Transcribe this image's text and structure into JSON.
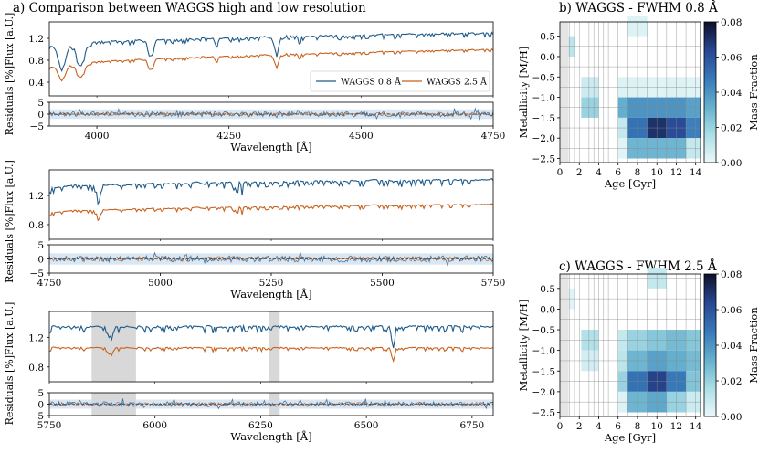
{
  "colors": {
    "high": "#1f5b8a",
    "low": "#c8621e",
    "band": "#c9ddf0",
    "mask": "#d8d8d8"
  },
  "chart_data": [
    {
      "type": "line",
      "title": "a) Comparison between WAGGS high and low resolution",
      "ylabel": "Flux [a.U.]",
      "residual_ylabel": "Residuals [%]",
      "xlabel": "Wavelength [Å]",
      "legend": {
        "placement": "lower-right",
        "entries": [
          "WAGGS 0.8 Å",
          "WAGGS 2.5 Å"
        ]
      },
      "series": [
        {
          "name": "WAGGS 0.8 Å",
          "color": "#1f5b8a"
        },
        {
          "name": "WAGGS 2.5 Å",
          "color": "#c8621e"
        }
      ],
      "residual_band": [
        -2,
        2
      ],
      "panels": [
        {
          "xlim": [
            3910,
            4750
          ],
          "ylim": [
            0.15,
            1.5
          ],
          "rylim": [
            -5,
            5
          ],
          "xticks": [
            4000,
            4250,
            4500,
            4750
          ],
          "xtick_labels": [
            "4000",
            "4250",
            "4500",
            "4750"
          ],
          "yticks": [
            0.4,
            0.8,
            1.2
          ],
          "ytick_labels": [
            "0.4",
            "0.8",
            "1.2"
          ],
          "rticks": [
            -5,
            0,
            5
          ],
          "rtick_labels": [
            "−5",
            "0",
            "5"
          ],
          "base_high": [
            1.05,
            1.3
          ],
          "base_low": [
            0.66,
            1.0
          ],
          "lines": [
            [
              3934,
              0.42,
              10
            ],
            [
              3969,
              0.4,
              10
            ],
            [
              4102,
              0.25,
              6
            ],
            [
              4227,
              0.12,
              3
            ],
            [
              4340,
              0.25,
              6
            ],
            [
              4383,
              0.08,
              3
            ]
          ],
          "masks": []
        },
        {
          "xlim": [
            4750,
            5750
          ],
          "ylim": [
            0.6,
            1.55
          ],
          "rylim": [
            -5,
            5
          ],
          "xticks": [
            4750,
            5000,
            5250,
            5500,
            5750
          ],
          "xtick_labels": [
            "4750",
            "5000",
            "5250",
            "5500",
            "5750"
          ],
          "yticks": [
            0.8,
            1.2
          ],
          "ytick_labels": [
            "0.8",
            "1.2"
          ],
          "rticks": [
            -5,
            0,
            5
          ],
          "rtick_labels": [
            "−5",
            "0",
            "5"
          ],
          "base_high": [
            1.3,
            1.42
          ],
          "base_low": [
            0.96,
            1.08
          ],
          "lines": [
            [
              4861,
              0.3,
              5
            ],
            [
              5167,
              0.2,
              2
            ],
            [
              5173,
              0.22,
              2
            ],
            [
              5184,
              0.22,
              2
            ],
            [
              5270,
              0.1,
              3
            ],
            [
              5335,
              0.06,
              3
            ]
          ],
          "masks": []
        },
        {
          "xlim": [
            5750,
            6800
          ],
          "ylim": [
            0.6,
            1.55
          ],
          "rylim": [
            -5,
            5
          ],
          "xticks": [
            5750,
            6000,
            6250,
            6500,
            6750
          ],
          "xtick_labels": [
            "5750",
            "6000",
            "6250",
            "6500",
            "6750"
          ],
          "yticks": [
            0.8,
            1.2
          ],
          "ytick_labels": [
            "0.8",
            "1.2"
          ],
          "rticks": [
            -5,
            0,
            5
          ],
          "rtick_labels": [
            "−5",
            "0",
            "5"
          ],
          "base_high": [
            1.34,
            1.35
          ],
          "base_low": [
            1.06,
            1.06
          ],
          "lines": [
            [
              5890,
              0.18,
              3
            ],
            [
              5896,
              0.16,
              3
            ],
            [
              6563,
              0.38,
              4
            ],
            [
              6495,
              0.05,
              3
            ]
          ],
          "masks": [
            [
              5850,
              5955
            ],
            [
              6270,
              6295
            ]
          ]
        }
      ]
    },
    {
      "type": "heatmap",
      "title": "b) WAGGS - FWHM 0.8 Å",
      "xlabel": "Age [Gyr]",
      "ylabel": "Metallicity [M/H]",
      "colorbar_label": "Mass Fraction",
      "colorbar_ticks": [
        "0.00",
        "0.02",
        "0.04",
        "0.06",
        "0.08"
      ],
      "vmax": 0.08,
      "xlim": [
        0,
        14.5
      ],
      "ylim": [
        -2.6,
        0.85
      ],
      "xticks": [
        0,
        2,
        4,
        6,
        8,
        10,
        12,
        14
      ],
      "yticks": [
        0.5,
        0.0,
        -0.5,
        -1.0,
        -1.5,
        -2.0,
        -2.5
      ],
      "ytick_labels": [
        "0.5",
        "0.0",
        "−0.5",
        "−1.0",
        "−1.5",
        "−2.0",
        "−2.5"
      ],
      "age_bins": [
        1,
        1.5,
        2,
        3,
        3.5,
        4,
        4.5,
        5,
        6,
        7,
        8,
        9,
        10,
        11,
        12,
        13,
        14
      ],
      "met_bins": [
        0.5,
        0.0,
        -0.5,
        -1.0,
        -1.5,
        -2.0,
        -2.5
      ],
      "cells": [
        {
          "age": 1.0,
          "met": 0.25,
          "v": 0.012
        },
        {
          "age": 7.5,
          "met": 0.75,
          "v": 0.004
        },
        {
          "age": 3.0,
          "met": -0.75,
          "v": 0.008
        },
        {
          "age": 6.5,
          "met": -0.75,
          "v": 0.004
        },
        {
          "age": 8.5,
          "met": -0.75,
          "v": 0.004
        },
        {
          "age": 10.5,
          "met": -0.75,
          "v": 0.003
        },
        {
          "age": 12.5,
          "met": -0.75,
          "v": 0.004
        },
        {
          "age": 14.0,
          "met": -0.75,
          "v": 0.003
        },
        {
          "age": 3.0,
          "met": -1.25,
          "v": 0.02
        },
        {
          "age": 6.5,
          "met": -1.25,
          "v": 0.032
        },
        {
          "age": 8.5,
          "met": -1.25,
          "v": 0.04
        },
        {
          "age": 10.5,
          "met": -1.25,
          "v": 0.04
        },
        {
          "age": 12.5,
          "met": -1.25,
          "v": 0.04
        },
        {
          "age": 14.0,
          "met": -1.25,
          "v": 0.036
        },
        {
          "age": 6.5,
          "met": -1.75,
          "v": 0.01
        },
        {
          "age": 8.5,
          "met": -1.75,
          "v": 0.05
        },
        {
          "age": 10.5,
          "met": -1.75,
          "v": 0.07
        },
        {
          "age": 12.5,
          "met": -1.75,
          "v": 0.062
        },
        {
          "age": 14.0,
          "met": -1.75,
          "v": 0.046
        },
        {
          "age": 6.5,
          "met": -2.25,
          "v": 0.003
        },
        {
          "age": 8.5,
          "met": -2.25,
          "v": 0.03
        },
        {
          "age": 10.5,
          "met": -2.25,
          "v": 0.03
        },
        {
          "age": 12.5,
          "met": -2.25,
          "v": 0.03
        },
        {
          "age": 14.0,
          "met": -2.25,
          "v": 0.01
        }
      ]
    },
    {
      "type": "heatmap",
      "title": "c) WAGGS - FWHM 2.5 Å",
      "xlabel": "Age [Gyr]",
      "ylabel": "Metallicity [M/H]",
      "colorbar_label": "Mass Fraction",
      "colorbar_ticks": [
        "0.00",
        "0.02",
        "0.04",
        "0.06",
        "0.08"
      ],
      "vmax": 0.08,
      "xlim": [
        0,
        14.5
      ],
      "ylim": [
        -2.6,
        0.85
      ],
      "xticks": [
        0,
        2,
        4,
        6,
        8,
        10,
        12,
        14
      ],
      "yticks": [
        0.5,
        0.0,
        -0.5,
        -1.0,
        -1.5,
        -2.0,
        -2.5
      ],
      "ytick_labels": [
        "0.5",
        "0.0",
        "−0.5",
        "−1.0",
        "−1.5",
        "−2.0",
        "−2.5"
      ],
      "age_bins": [
        1,
        1.5,
        2,
        3,
        3.5,
        4,
        4.5,
        5,
        6,
        7,
        8,
        9,
        10,
        11,
        12,
        13,
        14
      ],
      "met_bins": [
        0.5,
        0.0,
        -0.5,
        -1.0,
        -1.5,
        -2.0,
        -2.5
      ],
      "cells": [
        {
          "age": 1.0,
          "met": 0.25,
          "v": 0.003
        },
        {
          "age": 10.5,
          "met": 0.75,
          "v": 0.01
        },
        {
          "age": 3.0,
          "met": -0.75,
          "v": 0.014
        },
        {
          "age": 6.5,
          "met": -0.75,
          "v": 0.01
        },
        {
          "age": 8.5,
          "met": -0.75,
          "v": 0.02
        },
        {
          "age": 10.5,
          "met": -0.75,
          "v": 0.024
        },
        {
          "age": 12.5,
          "met": -0.75,
          "v": 0.028
        },
        {
          "age": 14.0,
          "met": -0.75,
          "v": 0.024
        },
        {
          "age": 3.0,
          "met": -1.25,
          "v": 0.006
        },
        {
          "age": 6.5,
          "met": -1.25,
          "v": 0.012
        },
        {
          "age": 8.5,
          "met": -1.25,
          "v": 0.03
        },
        {
          "age": 10.5,
          "met": -1.25,
          "v": 0.036
        },
        {
          "age": 12.5,
          "met": -1.25,
          "v": 0.032
        },
        {
          "age": 14.0,
          "met": -1.25,
          "v": 0.028
        },
        {
          "age": 6.5,
          "met": -1.75,
          "v": 0.02
        },
        {
          "age": 8.5,
          "met": -1.75,
          "v": 0.05
        },
        {
          "age": 10.5,
          "met": -1.75,
          "v": 0.065
        },
        {
          "age": 12.5,
          "met": -1.75,
          "v": 0.048
        },
        {
          "age": 14.0,
          "met": -1.75,
          "v": 0.025
        },
        {
          "age": 6.5,
          "met": -2.25,
          "v": 0.004
        },
        {
          "age": 8.5,
          "met": -2.25,
          "v": 0.03
        },
        {
          "age": 10.5,
          "met": -2.25,
          "v": 0.034
        },
        {
          "age": 12.5,
          "met": -2.25,
          "v": 0.02
        },
        {
          "age": 14.0,
          "met": -2.25,
          "v": 0.008
        }
      ]
    }
  ]
}
